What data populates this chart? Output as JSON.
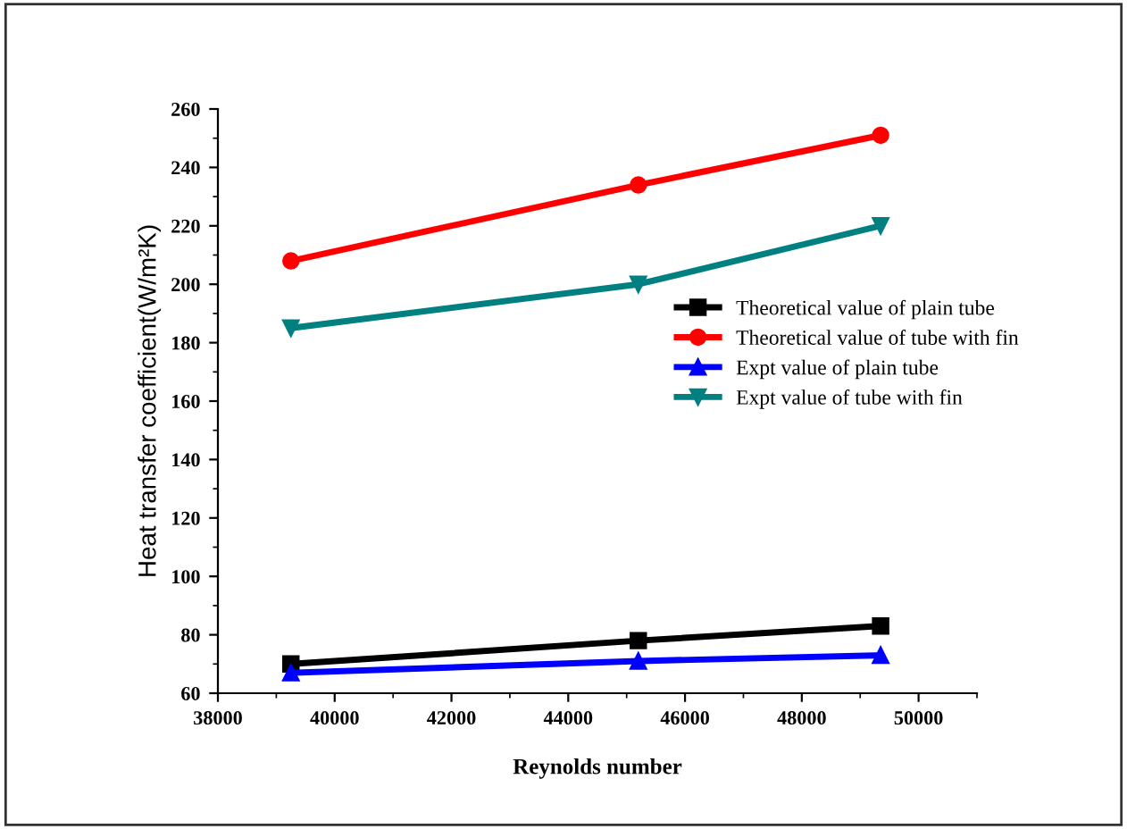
{
  "chart_data": {
    "type": "line",
    "xlabel": "Reynolds number",
    "ylabel": "Heat transfer coefficient(W/m²K)",
    "x": [
      39250,
      45200,
      49350
    ],
    "series": [
      {
        "name": "Theoretical value of plain tube",
        "color": "#000000",
        "marker": "square",
        "values": [
          70,
          78,
          83
        ]
      },
      {
        "name": "Theoretical value of tube with fin",
        "color": "#ff0000",
        "marker": "circle",
        "values": [
          208,
          234,
          251
        ]
      },
      {
        "name": "Expt value of plain tube",
        "color": "#0000ff",
        "marker": "triangle",
        "values": [
          67,
          71,
          73
        ]
      },
      {
        "name": "Expt value of tube with fin",
        "color": "#008080",
        "marker": "triangle_down",
        "values": [
          185,
          200,
          220
        ]
      }
    ],
    "xlim": [
      38000,
      51000
    ],
    "xticks": [
      38000,
      40000,
      42000,
      44000,
      46000,
      48000,
      50000
    ],
    "ylim": [
      60,
      260
    ],
    "yticks": [
      60,
      80,
      100,
      120,
      140,
      160,
      180,
      200,
      220,
      240,
      260
    ],
    "grid": false,
    "legend": "right"
  }
}
